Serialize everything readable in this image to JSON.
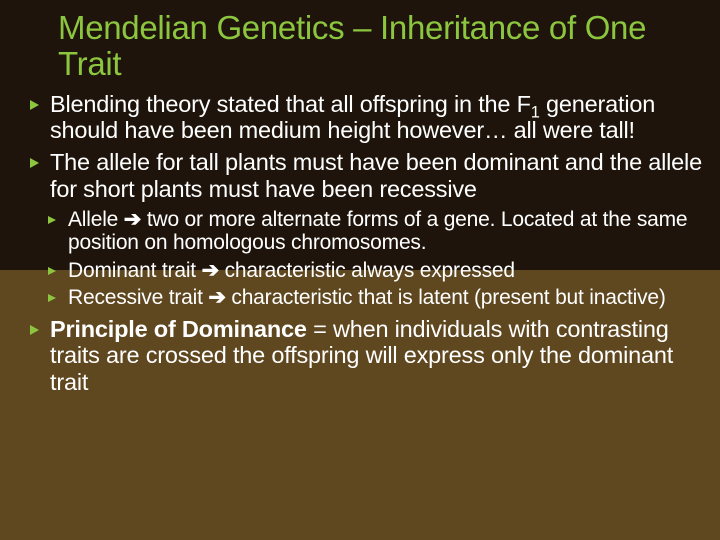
{
  "slide": {
    "title_color": "#8cc63f",
    "bg_top_color": "#1e140b",
    "bg_bottom_color": "#5f471f",
    "bullet_color": "#8cc63f",
    "text_color": "#ffffff",
    "title": "Mendelian Genetics – Inheritance of One Trait",
    "bullets": [
      {
        "runs": [
          {
            "t": "Blending theory stated that all offspring in the F"
          },
          {
            "t": "1",
            "sub": true
          },
          {
            "t": " generation should have been medium height however… all were tall!"
          }
        ]
      },
      {
        "runs": [
          {
            "t": "The allele for tall plants must have been dominant and the allele for short plants must have been recessive"
          }
        ],
        "sub": [
          {
            "runs": [
              {
                "t": "Allele "
              },
              {
                "t": "→",
                "arrow": true
              },
              {
                "t": " two or more alternate forms of a gene. Located at the same position on homologous chromosomes."
              }
            ]
          },
          {
            "runs": [
              {
                "t": "Dominant trait "
              },
              {
                "t": "→",
                "arrow": true
              },
              {
                "t": " characteristic always expressed"
              }
            ]
          },
          {
            "runs": [
              {
                "t": "Recessive trait "
              },
              {
                "t": "→",
                "arrow": true
              },
              {
                "t": " characteristic that is latent (present but inactive)"
              }
            ]
          }
        ]
      },
      {
        "runs": [
          {
            "t": "Principle of Dominance",
            "bold": true
          },
          {
            "t": " = when individuals with contrasting traits are crossed the offspring will express only the dominant trait"
          }
        ]
      }
    ]
  }
}
